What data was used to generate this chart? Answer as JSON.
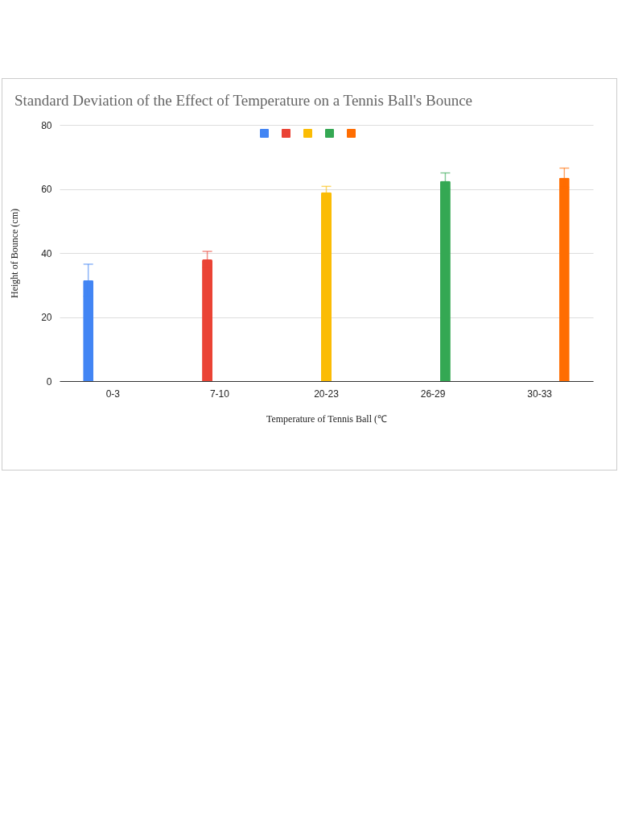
{
  "chart_data": {
    "type": "bar",
    "title": "Standard Deviation of the Effect of Temperature on a Tennis Ball's Bounce",
    "xlabel": "Temperature of Tennis Ball (℃",
    "ylabel": "Height of Bounce (cm)",
    "categories": [
      "0-3",
      "7-10",
      "20-23",
      "26-29",
      "30-33"
    ],
    "series": [
      {
        "color": "#4285f4",
        "values": [
          31.5,
          null,
          null,
          null,
          null
        ],
        "errors": [
          5,
          null,
          null,
          null,
          null
        ]
      },
      {
        "color": "#ea4335",
        "values": [
          null,
          38,
          null,
          null,
          null
        ],
        "errors": [
          null,
          2.5,
          null,
          null,
          null
        ]
      },
      {
        "color": "#fbbc04",
        "values": [
          null,
          null,
          59,
          null,
          null
        ],
        "errors": [
          null,
          null,
          1.8,
          null,
          null
        ]
      },
      {
        "color": "#34a853",
        "values": [
          null,
          null,
          null,
          62.5,
          null
        ],
        "errors": [
          null,
          null,
          null,
          2.5,
          null
        ]
      },
      {
        "color": "#ff6d01",
        "values": [
          null,
          null,
          null,
          null,
          63.5
        ],
        "errors": [
          null,
          null,
          null,
          null,
          3
        ]
      }
    ],
    "ylim": [
      0,
      80
    ],
    "yticks": [
      0,
      20,
      40,
      60,
      80
    ],
    "grid": "y"
  }
}
